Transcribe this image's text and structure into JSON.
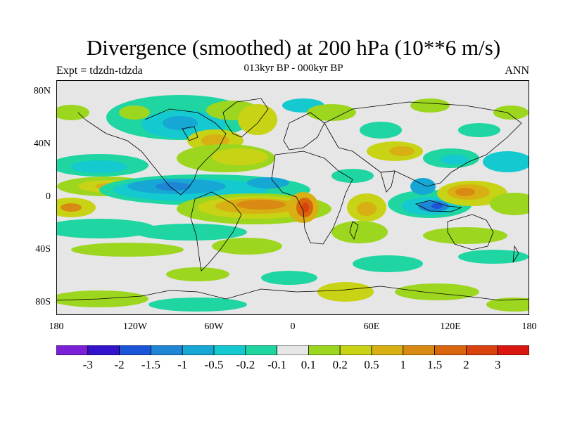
{
  "title": "Divergence (smoothed) at 200 hPa (10**6 m/s)",
  "subtitle": "013kyr BP - 000kyr BP",
  "left_label": "Expt = tdzdn-tdzda",
  "right_label": "ANN",
  "lat_ticks": [
    "80N",
    "40N",
    "0",
    "40S",
    "80S"
  ],
  "lon_ticks": [
    "180",
    "120W",
    "60W",
    "0",
    "60E",
    "120E",
    "180"
  ],
  "colorbar": {
    "colors": [
      "#7b1fd8",
      "#3314cc",
      "#1a55d8",
      "#1f86d6",
      "#16a7d4",
      "#14c9cf",
      "#1fd6a3",
      "#e6e6e6",
      "#9dd61f",
      "#c7d314",
      "#d8b014",
      "#d98a12",
      "#d9650d",
      "#d9410f",
      "#d9160f"
    ],
    "labels": [
      "-3",
      "-2",
      "-1.5",
      "-1",
      "-0.5",
      "-0.2",
      "-0.1",
      "0.1",
      "0.2",
      "0.5",
      "1",
      "1.5",
      "2",
      "3"
    ]
  },
  "legend_colors": {
    "neg_strong": "#1a55d8",
    "neg_mid": "#1f86d6",
    "neg_weak": "#16a7d4",
    "neg_light": "#14c9cf",
    "neg_faint": "#1fd6a3",
    "pos_faint": "#9dd61f",
    "pos_light": "#c7d314",
    "pos_weak": "#d8b014",
    "pos_mid": "#d98a12",
    "pos_strong": "#d9410f",
    "neutral": "#e6e6e6"
  }
}
